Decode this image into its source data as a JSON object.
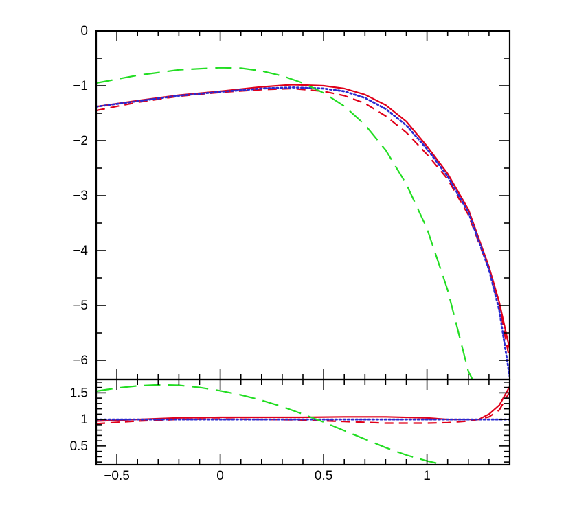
{
  "chart_data": [
    {
      "type": "line",
      "title": "",
      "xlabel": "",
      "ylabel": "",
      "xlim": [
        -0.6,
        1.4
      ],
      "ylim": [
        -6.35,
        0
      ],
      "grid": false,
      "legend": "none",
      "x_ticks": [
        {
          "v": -0.5
        },
        {
          "v": 0
        },
        {
          "v": 0.5
        },
        {
          "v": 1
        }
      ],
      "y_ticks": [
        {
          "v": 0,
          "label": "0"
        },
        {
          "v": -1,
          "label": "−1"
        },
        {
          "v": -2,
          "label": "−2"
        },
        {
          "v": -3,
          "label": "−3"
        },
        {
          "v": -4,
          "label": "−4"
        },
        {
          "v": -5,
          "label": "−5"
        },
        {
          "v": -6,
          "label": "−6"
        }
      ],
      "series": [
        {
          "color": "#e0001a",
          "dash": "solid",
          "points": [
            [
              -0.6,
              -1.38
            ],
            [
              -0.4,
              -1.27
            ],
            [
              -0.2,
              -1.17
            ],
            [
              0,
              -1.1
            ],
            [
              0.2,
              -1.02
            ],
            [
              0.35,
              -0.98
            ],
            [
              0.5,
              -1.0
            ],
            [
              0.6,
              -1.05
            ],
            [
              0.7,
              -1.16
            ],
            [
              0.8,
              -1.35
            ],
            [
              0.9,
              -1.65
            ],
            [
              1.0,
              -2.1
            ],
            [
              1.1,
              -2.6
            ],
            [
              1.2,
              -3.25
            ],
            [
              1.3,
              -4.3
            ],
            [
              1.35,
              -4.95
            ],
            [
              1.4,
              -5.8
            ]
          ]
        },
        {
          "color": "#e0001a",
          "dash": "dashed",
          "points": [
            [
              -0.6,
              -1.45
            ],
            [
              -0.4,
              -1.3
            ],
            [
              -0.2,
              -1.19
            ],
            [
              0,
              -1.12
            ],
            [
              0.2,
              -1.07
            ],
            [
              0.35,
              -1.05
            ],
            [
              0.5,
              -1.1
            ],
            [
              0.6,
              -1.18
            ],
            [
              0.7,
              -1.32
            ],
            [
              0.8,
              -1.55
            ],
            [
              0.9,
              -1.85
            ],
            [
              1.0,
              -2.25
            ],
            [
              1.1,
              -2.7
            ],
            [
              1.2,
              -3.35
            ],
            [
              1.3,
              -4.35
            ],
            [
              1.35,
              -5.0
            ],
            [
              1.4,
              -6.0
            ]
          ]
        },
        {
          "color": "#2a2ad0",
          "dash": "dotted",
          "points": [
            [
              -0.6,
              -1.38
            ],
            [
              -0.4,
              -1.28
            ],
            [
              -0.2,
              -1.18
            ],
            [
              0,
              -1.11
            ],
            [
              0.2,
              -1.05
            ],
            [
              0.35,
              -1.03
            ],
            [
              0.5,
              -1.05
            ],
            [
              0.6,
              -1.1
            ],
            [
              0.7,
              -1.22
            ],
            [
              0.8,
              -1.42
            ],
            [
              0.9,
              -1.72
            ],
            [
              1.0,
              -2.15
            ],
            [
              1.1,
              -2.65
            ],
            [
              1.2,
              -3.3
            ],
            [
              1.3,
              -4.35
            ],
            [
              1.35,
              -5.1
            ],
            [
              1.4,
              -6.3
            ]
          ]
        },
        {
          "color": "#22dd22",
          "dash": "longdash",
          "points": [
            [
              -0.6,
              -0.95
            ],
            [
              -0.4,
              -0.81
            ],
            [
              -0.2,
              -0.71
            ],
            [
              0,
              -0.67
            ],
            [
              0.1,
              -0.68
            ],
            [
              0.2,
              -0.73
            ],
            [
              0.3,
              -0.82
            ],
            [
              0.4,
              -0.95
            ],
            [
              0.5,
              -1.13
            ],
            [
              0.6,
              -1.37
            ],
            [
              0.7,
              -1.71
            ],
            [
              0.8,
              -2.17
            ],
            [
              0.9,
              -2.79
            ],
            [
              1.0,
              -3.6
            ],
            [
              1.1,
              -4.72
            ],
            [
              1.2,
              -6.2
            ],
            [
              1.22,
              -6.35
            ]
          ]
        }
      ]
    },
    {
      "type": "line",
      "title": "",
      "xlabel": "",
      "ylabel": "",
      "xlim": [
        -0.6,
        1.4
      ],
      "ylim": [
        0.15,
        1.75
      ],
      "grid": false,
      "legend": "none",
      "x_ticks": [
        {
          "v": -0.5,
          "label": "−0.5"
        },
        {
          "v": 0,
          "label": "0"
        },
        {
          "v": 0.5,
          "label": "0.5"
        },
        {
          "v": 1,
          "label": "1"
        }
      ],
      "y_ticks": [
        {
          "v": 1.5,
          "label": "1.5"
        },
        {
          "v": 1,
          "label": "1"
        },
        {
          "v": 0.5,
          "label": "0.5"
        }
      ],
      "series": [
        {
          "color": "#e0001a",
          "dash": "solid",
          "points": [
            [
              -0.6,
              0.97
            ],
            [
              -0.4,
              1.0
            ],
            [
              -0.2,
              1.03
            ],
            [
              0,
              1.04
            ],
            [
              0.2,
              1.04
            ],
            [
              0.4,
              1.04
            ],
            [
              0.6,
              1.05
            ],
            [
              0.8,
              1.05
            ],
            [
              1.0,
              1.03
            ],
            [
              1.1,
              1.0
            ],
            [
              1.2,
              1.0
            ],
            [
              1.25,
              1.0
            ],
            [
              1.3,
              1.1
            ],
            [
              1.35,
              1.27
            ],
            [
              1.4,
              1.62
            ]
          ]
        },
        {
          "color": "#e0001a",
          "dash": "dashed",
          "points": [
            [
              -0.6,
              0.92
            ],
            [
              -0.4,
              0.97
            ],
            [
              -0.2,
              1.0
            ],
            [
              0,
              1.01
            ],
            [
              0.2,
              1.0
            ],
            [
              0.4,
              0.99
            ],
            [
              0.6,
              0.96
            ],
            [
              0.8,
              0.93
            ],
            [
              1.0,
              0.93
            ],
            [
              1.1,
              0.94
            ],
            [
              1.2,
              0.97
            ],
            [
              1.25,
              1.0
            ],
            [
              1.3,
              1.05
            ],
            [
              1.35,
              1.18
            ],
            [
              1.4,
              1.52
            ]
          ]
        },
        {
          "color": "#2a2ad0",
          "dash": "dotted",
          "points": [
            [
              -0.6,
              1.0
            ],
            [
              1.4,
              1.0
            ]
          ]
        },
        {
          "color": "#22dd22",
          "dash": "longdash",
          "points": [
            [
              -0.6,
              1.53
            ],
            [
              -0.5,
              1.59
            ],
            [
              -0.4,
              1.63
            ],
            [
              -0.3,
              1.65
            ],
            [
              -0.2,
              1.64
            ],
            [
              -0.1,
              1.6
            ],
            [
              0,
              1.54
            ],
            [
              0.1,
              1.46
            ],
            [
              0.2,
              1.36
            ],
            [
              0.3,
              1.24
            ],
            [
              0.4,
              1.1
            ],
            [
              0.5,
              0.95
            ],
            [
              0.6,
              0.79
            ],
            [
              0.7,
              0.63
            ],
            [
              0.8,
              0.47
            ],
            [
              0.9,
              0.33
            ],
            [
              1.0,
              0.22
            ],
            [
              1.08,
              0.15
            ]
          ]
        }
      ]
    }
  ]
}
